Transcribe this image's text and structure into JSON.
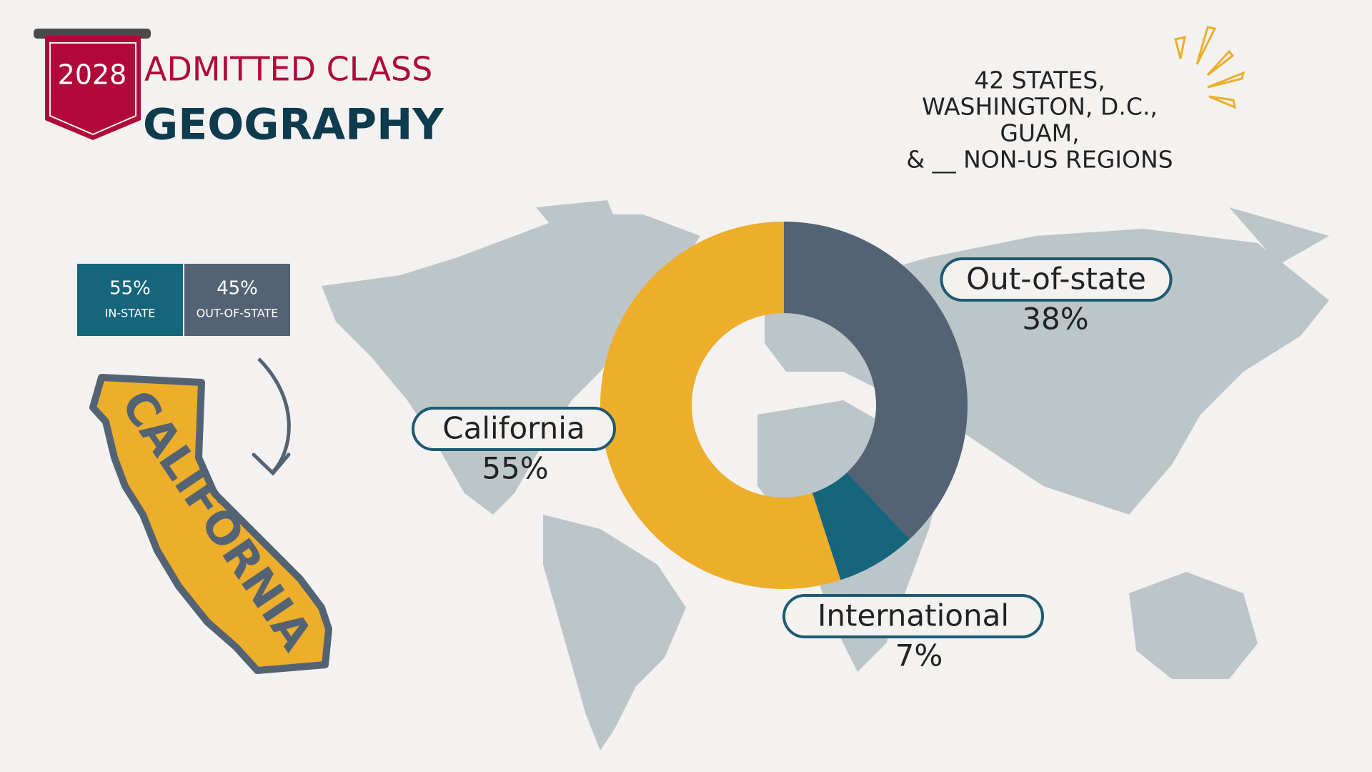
{
  "header": {
    "year": "2028",
    "title": "ADMITTED CLASS",
    "subtitle": "GEOGRAPHY"
  },
  "note_lines": [
    "42 STATES,",
    "WASHINGTON, D.C.,",
    "GUAM,",
    "& __ NON-US REGIONS"
  ],
  "stat_boxes": [
    {
      "value": "55%",
      "label": "IN-STATE"
    },
    {
      "value": "45%",
      "label": "OUT-OF-STATE"
    }
  ],
  "state_graphic_label": "CALIFORNIA",
  "chart_data": {
    "type": "donut",
    "categories": [
      "Out-of-state",
      "International",
      "California"
    ],
    "values": [
      38,
      7,
      55
    ],
    "value_labels": [
      "38%",
      "7%",
      "55%"
    ],
    "colors": [
      "#536373",
      "#15657c",
      "#edae2c"
    ]
  }
}
